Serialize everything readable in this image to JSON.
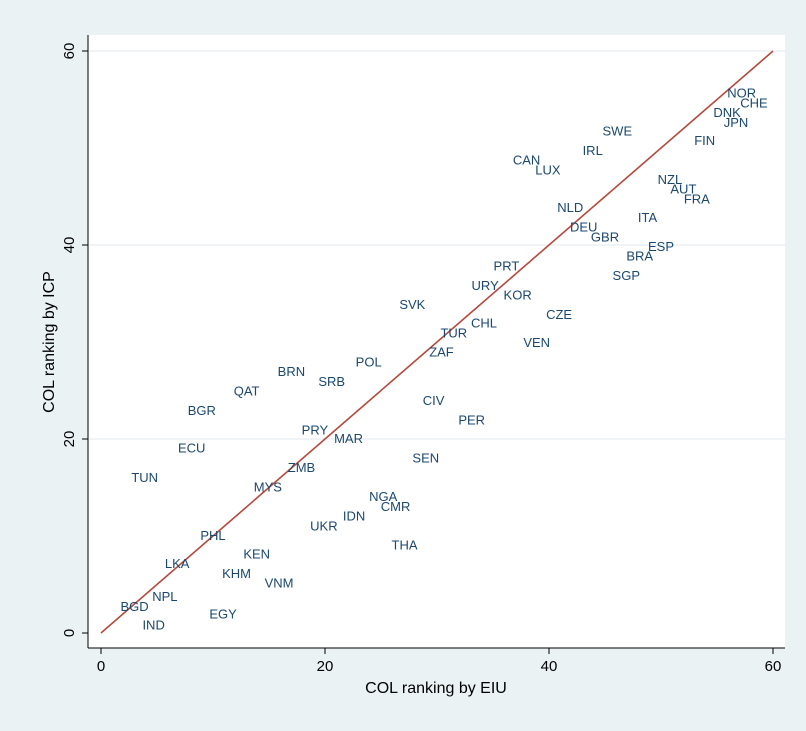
{
  "chart_data": {
    "type": "scatter",
    "xlabel": "COL ranking by EIU",
    "ylabel": "COL ranking by ICP",
    "xlim": [
      0,
      60
    ],
    "ylim": [
      0,
      60
    ],
    "xticks": [
      0,
      20,
      40,
      60
    ],
    "yticks": [
      0,
      20,
      40,
      60
    ],
    "grid": "horizontal",
    "reference_line": {
      "from": [
        0,
        0
      ],
      "to": [
        60,
        60
      ],
      "color": "#b5483a"
    },
    "colors": {
      "background": "#eaf2f3",
      "plot_area": "#ffffff",
      "labels": "#1a476f",
      "grid": "#e6eef0"
    },
    "points": [
      {
        "label": "NOR",
        "x": 57.2,
        "y": 55.7
      },
      {
        "label": "CHE",
        "x": 58.3,
        "y": 54.7
      },
      {
        "label": "DNK",
        "x": 55.9,
        "y": 53.7
      },
      {
        "label": "JPN",
        "x": 56.7,
        "y": 52.7
      },
      {
        "label": "FIN",
        "x": 53.9,
        "y": 50.8
      },
      {
        "label": "SWE",
        "x": 46.1,
        "y": 51.8
      },
      {
        "label": "IRL",
        "x": 43.9,
        "y": 49.8
      },
      {
        "label": "CAN",
        "x": 38.0,
        "y": 48.8
      },
      {
        "label": "LUX",
        "x": 39.9,
        "y": 47.8
      },
      {
        "label": "NZL",
        "x": 50.8,
        "y": 46.8
      },
      {
        "label": "AUT",
        "x": 52.0,
        "y": 45.8
      },
      {
        "label": "FRA",
        "x": 53.2,
        "y": 44.8
      },
      {
        "label": "NLD",
        "x": 41.9,
        "y": 43.9
      },
      {
        "label": "ITA",
        "x": 48.8,
        "y": 42.9
      },
      {
        "label": "DEU",
        "x": 43.1,
        "y": 41.9
      },
      {
        "label": "GBR",
        "x": 45.0,
        "y": 40.9
      },
      {
        "label": "ESP",
        "x": 50.0,
        "y": 39.9
      },
      {
        "label": "BRA",
        "x": 48.1,
        "y": 38.9
      },
      {
        "label": "PRT",
        "x": 36.2,
        "y": 37.9
      },
      {
        "label": "SGP",
        "x": 46.9,
        "y": 36.9
      },
      {
        "label": "URY",
        "x": 34.3,
        "y": 35.9
      },
      {
        "label": "KOR",
        "x": 37.2,
        "y": 34.9
      },
      {
        "label": "SVK",
        "x": 27.8,
        "y": 33.9
      },
      {
        "label": "CZE",
        "x": 40.9,
        "y": 32.9
      },
      {
        "label": "CHL",
        "x": 34.2,
        "y": 32.0
      },
      {
        "label": "TUR",
        "x": 31.5,
        "y": 31.0
      },
      {
        "label": "VEN",
        "x": 38.9,
        "y": 30.0
      },
      {
        "label": "ZAF",
        "x": 30.4,
        "y": 29.0
      },
      {
        "label": "POL",
        "x": 23.9,
        "y": 28.0
      },
      {
        "label": "BRN",
        "x": 17.0,
        "y": 27.0
      },
      {
        "label": "SRB",
        "x": 20.6,
        "y": 26.0
      },
      {
        "label": "QAT",
        "x": 13.0,
        "y": 25.0
      },
      {
        "label": "CIV",
        "x": 29.7,
        "y": 24.0
      },
      {
        "label": "BGR",
        "x": 9.0,
        "y": 23.0
      },
      {
        "label": "PER",
        "x": 33.1,
        "y": 22.0
      },
      {
        "label": "PRY",
        "x": 19.1,
        "y": 21.0
      },
      {
        "label": "MAR",
        "x": 22.1,
        "y": 20.1
      },
      {
        "label": "ECU",
        "x": 8.1,
        "y": 19.1
      },
      {
        "label": "SEN",
        "x": 29.0,
        "y": 18.1
      },
      {
        "label": "ZMB",
        "x": 17.9,
        "y": 17.1
      },
      {
        "label": "TUN",
        "x": 3.9,
        "y": 16.1
      },
      {
        "label": "MYS",
        "x": 14.9,
        "y": 15.1
      },
      {
        "label": "NGA",
        "x": 25.2,
        "y": 14.1
      },
      {
        "label": "CMR",
        "x": 26.3,
        "y": 13.1
      },
      {
        "label": "IDN",
        "x": 22.6,
        "y": 12.1
      },
      {
        "label": "UKR",
        "x": 19.9,
        "y": 11.1
      },
      {
        "label": "PHL",
        "x": 10.0,
        "y": 10.1
      },
      {
        "label": "THA",
        "x": 27.1,
        "y": 9.1
      },
      {
        "label": "KEN",
        "x": 13.9,
        "y": 8.2
      },
      {
        "label": "LKA",
        "x": 6.8,
        "y": 7.2
      },
      {
        "label": "KHM",
        "x": 12.1,
        "y": 6.2
      },
      {
        "label": "VNM",
        "x": 15.9,
        "y": 5.2
      },
      {
        "label": "NPL",
        "x": 5.7,
        "y": 3.8
      },
      {
        "label": "BGD",
        "x": 3.0,
        "y": 2.8
      },
      {
        "label": "EGY",
        "x": 10.9,
        "y": 2.0
      },
      {
        "label": "IND",
        "x": 4.7,
        "y": 0.9
      }
    ]
  }
}
